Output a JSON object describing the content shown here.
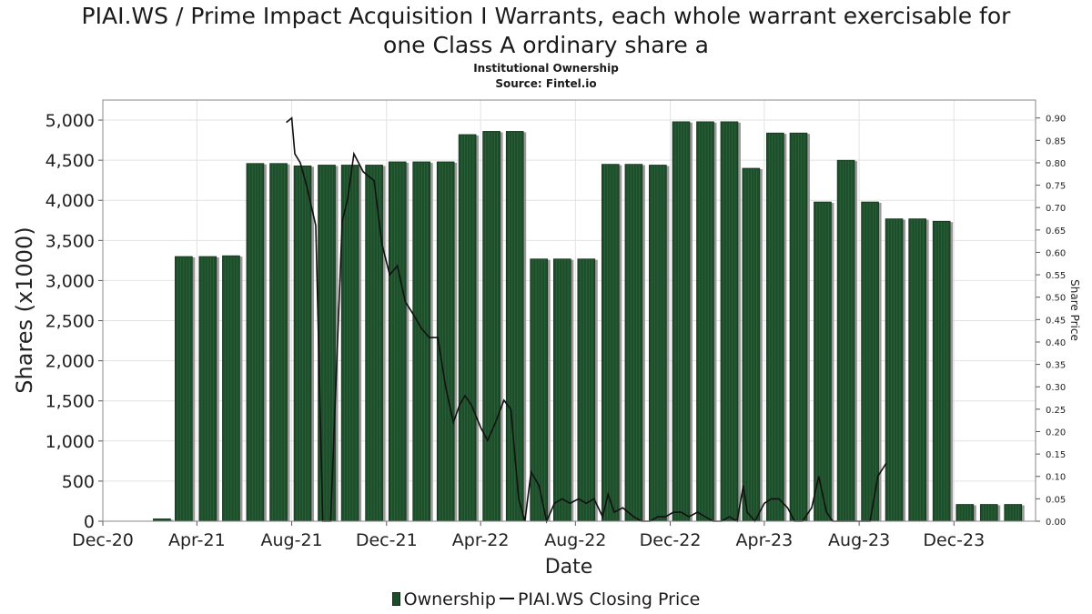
{
  "title_line1": "PIAI.WS / Prime Impact Acquisition I Warrants, each whole warrant exercisable for",
  "title_line2": "one Class A ordinary share a",
  "subtitle1": "Institutional Ownership",
  "subtitle2": "Source: Fintel.io",
  "legend": {
    "ownership": "Ownership",
    "price": "PIAI.WS Closing Price"
  },
  "colors": {
    "bar": "#1e4d2b",
    "bar_shadow": "#9a9a9a",
    "line": "#111111",
    "grid": "#e2e2e2"
  },
  "chart_data": {
    "type": "bar",
    "title": "PIAI.WS / Prime Impact Acquisition I Warrants, each whole warrant exercisable for one Class A ordinary share a",
    "xlabel": "Date",
    "ylabel": "Shares (x1000)",
    "y2label": "Share Price",
    "ylim": [
      0,
      5250
    ],
    "y2lim": [
      0,
      0.94
    ],
    "xlim": [
      "2020-12-01",
      "2024-03-15"
    ],
    "yticks": [
      0,
      500,
      1000,
      1500,
      2000,
      2500,
      3000,
      3500,
      4000,
      4500,
      5000
    ],
    "ytick_labels": [
      "0",
      "500",
      "1,000",
      "1,500",
      "2,000",
      "2,500",
      "3,000",
      "3,500",
      "4,000",
      "4,500",
      "5,000"
    ],
    "y2ticks": [
      "0.00",
      "0.05",
      "0.10",
      "0.15",
      "0.20",
      "0.25",
      "0.30",
      "0.35",
      "0.40",
      "0.45",
      "0.50",
      "0.55",
      "0.60",
      "0.65",
      "0.70",
      "0.75",
      "0.80",
      "0.85",
      "0.90"
    ],
    "xticks": [
      {
        "date": "2020-12-01",
        "label": "Dec-20"
      },
      {
        "date": "2021-04-01",
        "label": "Apr-21"
      },
      {
        "date": "2021-08-01",
        "label": "Aug-21"
      },
      {
        "date": "2021-12-01",
        "label": "Dec-21"
      },
      {
        "date": "2022-04-01",
        "label": "Apr-22"
      },
      {
        "date": "2022-08-01",
        "label": "Aug-22"
      },
      {
        "date": "2022-12-01",
        "label": "Dec-22"
      },
      {
        "date": "2023-04-01",
        "label": "Apr-23"
      },
      {
        "date": "2023-08-01",
        "label": "Aug-23"
      },
      {
        "date": "2023-12-01",
        "label": "Dec-23"
      }
    ],
    "grid": true,
    "legend_position": "bottom",
    "series": [
      {
        "name": "Ownership",
        "type": "bar",
        "points": [
          {
            "date": "2021-02-15",
            "value": 30
          },
          {
            "date": "2021-03-15",
            "value": 3300
          },
          {
            "date": "2021-04-15",
            "value": 3300
          },
          {
            "date": "2021-05-15",
            "value": 3310
          },
          {
            "date": "2021-06-15",
            "value": 4460
          },
          {
            "date": "2021-07-15",
            "value": 4460
          },
          {
            "date": "2021-08-15",
            "value": 4430
          },
          {
            "date": "2021-09-15",
            "value": 4440
          },
          {
            "date": "2021-10-15",
            "value": 4440
          },
          {
            "date": "2021-11-15",
            "value": 4440
          },
          {
            "date": "2021-12-15",
            "value": 4480
          },
          {
            "date": "2022-01-15",
            "value": 4480
          },
          {
            "date": "2022-02-15",
            "value": 4480
          },
          {
            "date": "2022-03-15",
            "value": 4820
          },
          {
            "date": "2022-04-15",
            "value": 4860
          },
          {
            "date": "2022-05-15",
            "value": 4860
          },
          {
            "date": "2022-06-15",
            "value": 3270
          },
          {
            "date": "2022-07-15",
            "value": 3270
          },
          {
            "date": "2022-08-15",
            "value": 3270
          },
          {
            "date": "2022-09-15",
            "value": 4450
          },
          {
            "date": "2022-10-15",
            "value": 4450
          },
          {
            "date": "2022-11-15",
            "value": 4440
          },
          {
            "date": "2022-12-15",
            "value": 4980
          },
          {
            "date": "2023-01-15",
            "value": 4980
          },
          {
            "date": "2023-02-15",
            "value": 4980
          },
          {
            "date": "2023-03-15",
            "value": 4400
          },
          {
            "date": "2023-04-15",
            "value": 4840
          },
          {
            "date": "2023-05-15",
            "value": 4840
          },
          {
            "date": "2023-06-15",
            "value": 3980
          },
          {
            "date": "2023-07-15",
            "value": 4500
          },
          {
            "date": "2023-08-15",
            "value": 3980
          },
          {
            "date": "2023-09-15",
            "value": 3770
          },
          {
            "date": "2023-10-15",
            "value": 3770
          },
          {
            "date": "2023-11-15",
            "value": 3740
          },
          {
            "date": "2023-12-15",
            "value": 210
          },
          {
            "date": "2024-01-15",
            "value": 210
          },
          {
            "date": "2024-02-15",
            "value": 210
          }
        ]
      },
      {
        "name": "PIAI.WS Closing Price",
        "type": "line",
        "axis": "right",
        "points": [
          {
            "date": "2021-07-25",
            "value": 0.89
          },
          {
            "date": "2021-08-01",
            "value": 0.9
          },
          {
            "date": "2021-08-05",
            "value": 0.82
          },
          {
            "date": "2021-08-12",
            "value": 0.8
          },
          {
            "date": "2021-08-20",
            "value": 0.75
          },
          {
            "date": "2021-09-01",
            "value": 0.66
          },
          {
            "date": "2021-09-10",
            "value": 0.0
          },
          {
            "date": "2021-09-20",
            "value": 0.0
          },
          {
            "date": "2021-10-05",
            "value": 0.67
          },
          {
            "date": "2021-10-12",
            "value": 0.72
          },
          {
            "date": "2021-10-20",
            "value": 0.82
          },
          {
            "date": "2021-11-01",
            "value": 0.78
          },
          {
            "date": "2021-11-15",
            "value": 0.76
          },
          {
            "date": "2021-11-25",
            "value": 0.62
          },
          {
            "date": "2021-12-05",
            "value": 0.55
          },
          {
            "date": "2021-12-15",
            "value": 0.57
          },
          {
            "date": "2021-12-25",
            "value": 0.49
          },
          {
            "date": "2022-01-05",
            "value": 0.46
          },
          {
            "date": "2022-01-15",
            "value": 0.43
          },
          {
            "date": "2022-01-25",
            "value": 0.41
          },
          {
            "date": "2022-02-05",
            "value": 0.41
          },
          {
            "date": "2022-02-15",
            "value": 0.3
          },
          {
            "date": "2022-02-25",
            "value": 0.22
          },
          {
            "date": "2022-03-05",
            "value": 0.26
          },
          {
            "date": "2022-03-12",
            "value": 0.28
          },
          {
            "date": "2022-03-20",
            "value": 0.26
          },
          {
            "date": "2022-04-01",
            "value": 0.21
          },
          {
            "date": "2022-04-10",
            "value": 0.18
          },
          {
            "date": "2022-04-20",
            "value": 0.22
          },
          {
            "date": "2022-05-01",
            "value": 0.27
          },
          {
            "date": "2022-05-10",
            "value": 0.25
          },
          {
            "date": "2022-05-20",
            "value": 0.05
          },
          {
            "date": "2022-05-28",
            "value": 0.0
          },
          {
            "date": "2022-06-05",
            "value": 0.11
          },
          {
            "date": "2022-06-15",
            "value": 0.08
          },
          {
            "date": "2022-06-25",
            "value": 0.0
          },
          {
            "date": "2022-07-05",
            "value": 0.04
          },
          {
            "date": "2022-07-15",
            "value": 0.05
          },
          {
            "date": "2022-07-25",
            "value": 0.04
          },
          {
            "date": "2022-08-05",
            "value": 0.05
          },
          {
            "date": "2022-08-15",
            "value": 0.04
          },
          {
            "date": "2022-08-25",
            "value": 0.05
          },
          {
            "date": "2022-09-05",
            "value": 0.01
          },
          {
            "date": "2022-09-12",
            "value": 0.06
          },
          {
            "date": "2022-09-20",
            "value": 0.02
          },
          {
            "date": "2022-10-01",
            "value": 0.03
          },
          {
            "date": "2022-10-15",
            "value": 0.01
          },
          {
            "date": "2022-10-25",
            "value": 0.0
          },
          {
            "date": "2022-11-05",
            "value": 0.0
          },
          {
            "date": "2022-11-15",
            "value": 0.01
          },
          {
            "date": "2022-11-25",
            "value": 0.01
          },
          {
            "date": "2022-12-05",
            "value": 0.02
          },
          {
            "date": "2022-12-15",
            "value": 0.02
          },
          {
            "date": "2022-12-25",
            "value": 0.01
          },
          {
            "date": "2023-01-05",
            "value": 0.02
          },
          {
            "date": "2023-01-15",
            "value": 0.01
          },
          {
            "date": "2023-01-25",
            "value": 0.0
          },
          {
            "date": "2023-02-05",
            "value": 0.0
          },
          {
            "date": "2023-02-15",
            "value": 0.01
          },
          {
            "date": "2023-02-25",
            "value": 0.0
          },
          {
            "date": "2023-03-05",
            "value": 0.08
          },
          {
            "date": "2023-03-10",
            "value": 0.02
          },
          {
            "date": "2023-03-20",
            "value": 0.0
          },
          {
            "date": "2023-04-01",
            "value": 0.04
          },
          {
            "date": "2023-04-10",
            "value": 0.05
          },
          {
            "date": "2023-04-20",
            "value": 0.05
          },
          {
            "date": "2023-05-01",
            "value": 0.03
          },
          {
            "date": "2023-05-10",
            "value": 0.0
          },
          {
            "date": "2023-05-20",
            "value": 0.0
          },
          {
            "date": "2023-06-01",
            "value": 0.03
          },
          {
            "date": "2023-06-10",
            "value": 0.1
          },
          {
            "date": "2023-06-20",
            "value": 0.02
          },
          {
            "date": "2023-06-28",
            "value": 0.0
          },
          {
            "date": "2023-07-10",
            "value": 0.0
          },
          {
            "date": "2023-07-25",
            "value": 0.0
          },
          {
            "date": "2023-08-05",
            "value": 0.0
          },
          {
            "date": "2023-08-15",
            "value": 0.0
          },
          {
            "date": "2023-08-25",
            "value": 0.1
          },
          {
            "date": "2023-09-05",
            "value": 0.13
          }
        ]
      }
    ]
  }
}
